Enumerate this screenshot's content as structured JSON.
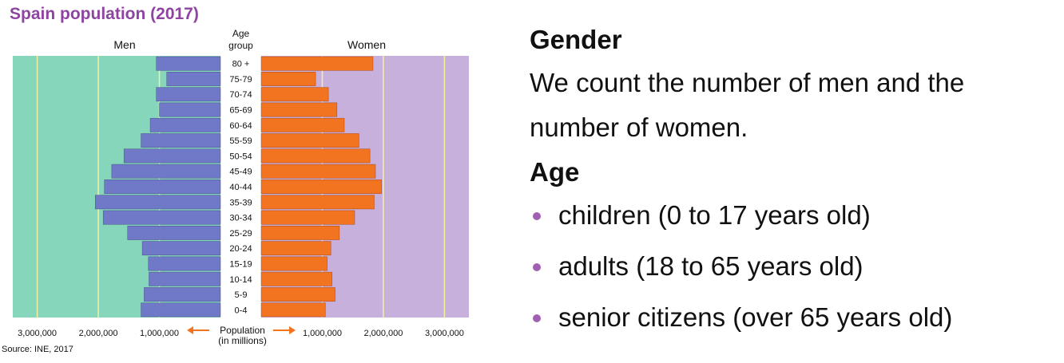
{
  "chart_data": {
    "type": "bar",
    "title": "Spain population (2017)",
    "left_label": "Men",
    "right_label": "Women",
    "category_header": [
      "Age",
      "group"
    ],
    "categories": [
      "80 +",
      "75-79",
      "70-74",
      "65-69",
      "60-64",
      "55-59",
      "50-54",
      "45-49",
      "40-44",
      "35-39",
      "30-34",
      "25-29",
      "20-24",
      "15-19",
      "10-14",
      "5-9",
      "0-4"
    ],
    "series": [
      {
        "name": "Men",
        "values": [
          1050000,
          880000,
          1050000,
          1000000,
          1150000,
          1300000,
          1580000,
          1780000,
          1900000,
          2050000,
          1920000,
          1520000,
          1280000,
          1180000,
          1170000,
          1250000,
          1300000
        ],
        "color": "#7078c8"
      },
      {
        "name": "Women",
        "values": [
          1830000,
          890000,
          1100000,
          1240000,
          1360000,
          1600000,
          1780000,
          1870000,
          1970000,
          1850000,
          1530000,
          1280000,
          1140000,
          1080000,
          1160000,
          1210000,
          1050000
        ],
        "color": "#f27320"
      }
    ],
    "x_ticks_left": [
      "3,000,000",
      "2,000,000",
      "1,000,000"
    ],
    "x_ticks_right": [
      "1,000,000",
      "2,000,000",
      "3,000,000"
    ],
    "tick_values": [
      1000000,
      2000000,
      3000000
    ],
    "xlim": [
      0,
      3400000
    ],
    "axis_label": [
      "Population",
      "(in millions)"
    ],
    "source": "Source: INE, 2017",
    "colors": {
      "men_background": "#86d6bc",
      "women_background": "#c8b0dc",
      "gridline": "#f5f0a0",
      "arrow": "#f27320",
      "title": "#8e44a0"
    }
  },
  "panel": {
    "heading_gender": "Gender",
    "gender_text": "We count the number of men and the number of women.",
    "heading_age": "Age",
    "age_items": [
      "children (0 to 17 years old)",
      "adults (18 to 65 years old)",
      "senior citizens (over 65 years old)"
    ]
  }
}
